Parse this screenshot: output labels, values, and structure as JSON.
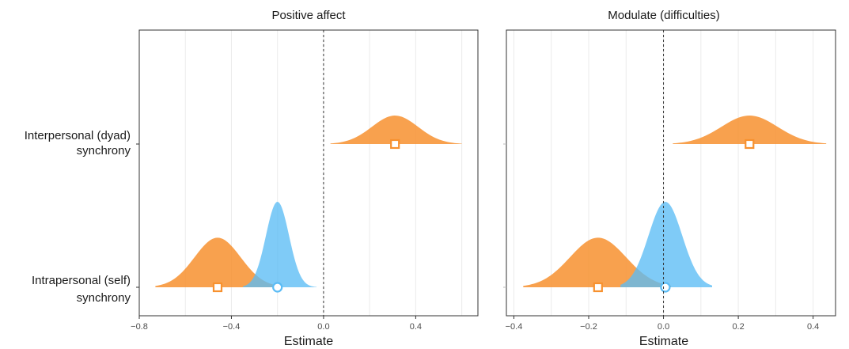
{
  "chart_data": [
    {
      "type": "area",
      "title": "Positive affect",
      "xlabel": "Estimate",
      "ylabel": "",
      "xlim": [
        -0.8,
        0.67
      ],
      "xticks": [
        "−0.8",
        "−0.4",
        "0.0",
        "0.4"
      ],
      "xtick_values": [
        -0.8,
        -0.4,
        0.0,
        0.4
      ],
      "categories": [
        "Interpersonal (dyad) synchrony",
        "Intrapersonal (self) synchrony"
      ],
      "category_lines": [
        [
          "Interpersonal (dyad)",
          "synchrony"
        ],
        [
          "Intrapersonal (self)",
          "synchrony"
        ]
      ],
      "reference_line": 0,
      "grid": true,
      "series": [
        {
          "color": "#f7912f",
          "marker": "square",
          "points": [
            {
              "category": "Interpersonal (dyad) synchrony",
              "estimate": 0.31,
              "low": 0.03,
              "high": 0.6,
              "sd": 0.1
            },
            {
              "category": "Intrapersonal (self) synchrony",
              "estimate": -0.46,
              "low": -0.73,
              "high": -0.19,
              "sd": 0.1
            }
          ]
        },
        {
          "color": "#5bbcf5",
          "marker": "circle",
          "points": [
            {
              "category": "Intrapersonal (self) synchrony",
              "estimate": -0.2,
              "low": -0.35,
              "high": -0.03,
              "sd": 0.05
            }
          ]
        }
      ]
    },
    {
      "type": "area",
      "title": "Modulate (difficulties)",
      "xlabel": "Estimate",
      "ylabel": "",
      "xlim": [
        -0.42,
        0.46
      ],
      "xticks": [
        "−0.4",
        "−0.2",
        "0.0",
        "0.2",
        "0.4"
      ],
      "xtick_values": [
        -0.4,
        -0.2,
        0.0,
        0.2,
        0.4
      ],
      "categories": [
        "Interpersonal (dyad) synchrony",
        "Intrapersonal (self) synchrony"
      ],
      "reference_line": 0,
      "grid": true,
      "series": [
        {
          "color": "#f7912f",
          "marker": "square",
          "points": [
            {
              "category": "Interpersonal (dyad) synchrony",
              "estimate": 0.23,
              "low": 0.025,
              "high": 0.435,
              "sd": 0.075
            },
            {
              "category": "Intrapersonal (self) synchrony",
              "estimate": -0.175,
              "low": -0.375,
              "high": 0.02,
              "sd": 0.075
            }
          ]
        },
        {
          "color": "#5bbcf5",
          "marker": "circle",
          "points": [
            {
              "category": "Intrapersonal (self) synchrony",
              "estimate": 0.005,
              "low": -0.115,
              "high": 0.13,
              "sd": 0.045
            }
          ]
        }
      ]
    }
  ]
}
